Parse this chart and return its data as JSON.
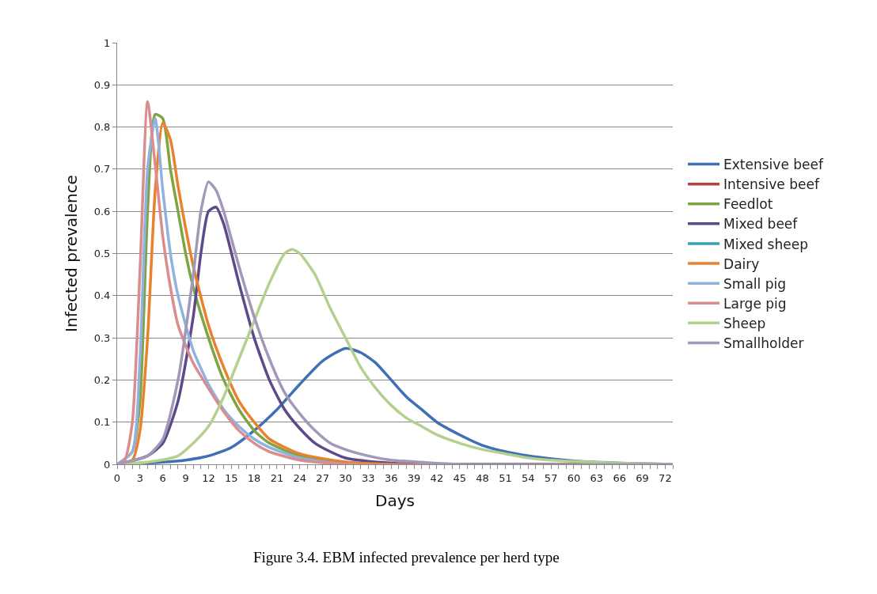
{
  "chart_data": {
    "type": "line",
    "xlabel": "Days",
    "ylabel": "Infected prevalence",
    "annotations": [
      "Figure 3.4. EBM infected prevalence per herd type"
    ],
    "xlim": [
      0,
      73
    ],
    "ylim": [
      0,
      1
    ],
    "yticks": [
      0,
      0.1,
      0.2,
      0.3,
      0.4,
      0.5,
      0.6,
      0.7,
      0.8,
      0.9,
      1
    ],
    "xticks": [
      0,
      {
        "value": 1,
        "label": null
      },
      {
        "value": 2,
        "label": null
      },
      3,
      {
        "value": 4,
        "label": null
      },
      {
        "value": 5,
        "label": null
      },
      6,
      {
        "value": 7,
        "label": null
      },
      {
        "value": 8,
        "label": null
      },
      9,
      {
        "value": 10,
        "label": null
      },
      {
        "value": 11,
        "label": null
      },
      12,
      {
        "value": 13,
        "label": null
      },
      {
        "value": 14,
        "label": null
      },
      15,
      {
        "value": 16,
        "label": null
      },
      {
        "value": 17,
        "label": null
      },
      18,
      {
        "value": 19,
        "label": null
      },
      {
        "value": 20,
        "label": null
      },
      21,
      {
        "value": 22,
        "label": null
      },
      {
        "value": 23,
        "label": null
      },
      24,
      {
        "value": 25,
        "label": null
      },
      {
        "value": 26,
        "label": null
      },
      27,
      {
        "value": 28,
        "label": null
      },
      {
        "value": 29,
        "label": null
      },
      30,
      {
        "value": 31,
        "label": null
      },
      {
        "value": 32,
        "label": null
      },
      33,
      {
        "value": 34,
        "label": null
      },
      {
        "value": 35,
        "label": null
      },
      36,
      {
        "value": 37,
        "label": null
      },
      {
        "value": 38,
        "label": null
      },
      39,
      {
        "value": 40,
        "label": null
      },
      {
        "value": 41,
        "label": null
      },
      42,
      {
        "value": 43,
        "label": null
      },
      {
        "value": 44,
        "label": null
      },
      45,
      {
        "value": 46,
        "label": null
      },
      {
        "value": 47,
        "label": null
      },
      48,
      {
        "value": 49,
        "label": null
      },
      {
        "value": 50,
        "label": null
      },
      51,
      {
        "value": 52,
        "label": null
      },
      {
        "value": 53,
        "label": null
      },
      54,
      {
        "value": 55,
        "label": null
      },
      {
        "value": 56,
        "label": null
      },
      57,
      {
        "value": 58,
        "label": null
      },
      {
        "value": 59,
        "label": null
      },
      60,
      {
        "value": 61,
        "label": null
      },
      {
        "value": 62,
        "label": null
      },
      63,
      {
        "value": 64,
        "label": null
      },
      {
        "value": 65,
        "label": null
      },
      66,
      {
        "value": 67,
        "label": null
      },
      {
        "value": 68,
        "label": null
      },
      69,
      {
        "value": 70,
        "label": null
      },
      {
        "value": 71,
        "label": null
      },
      72,
      {
        "value": 73,
        "label": null
      }
    ],
    "grid": "y",
    "legend": "right",
    "marker": "none",
    "line_style": "solid",
    "series": [
      {
        "name": "Extensive beef",
        "color": "#3f6fb5",
        "x": [
          0,
          6,
          9,
          12,
          15,
          18,
          21,
          24,
          27,
          30,
          32,
          34,
          36,
          38,
          40,
          42,
          45,
          48,
          51,
          54,
          57,
          60,
          66,
          73
        ],
        "values": [
          0,
          0.005,
          0.01,
          0.02,
          0.04,
          0.08,
          0.13,
          0.19,
          0.245,
          0.275,
          0.265,
          0.24,
          0.2,
          0.16,
          0.13,
          0.1,
          0.07,
          0.045,
          0.03,
          0.02,
          0.013,
          0.008,
          0.003,
          0
        ]
      },
      {
        "name": "Intensive beef",
        "color": "#b7403c"
      },
      {
        "name": "Feedlot",
        "color": "#7fa542",
        "x": [
          0,
          2,
          3,
          4,
          5,
          6,
          7,
          8,
          9,
          10,
          12,
          14,
          16,
          18,
          20,
          24,
          30,
          36,
          73
        ],
        "values": [
          0,
          0.03,
          0.15,
          0.6,
          0.83,
          0.82,
          0.7,
          0.6,
          0.5,
          0.42,
          0.3,
          0.2,
          0.13,
          0.08,
          0.05,
          0.02,
          0.005,
          0,
          0
        ]
      },
      {
        "name": "Mixed beef",
        "color": "#5e4a8b",
        "x": [
          0,
          4,
          6,
          8,
          10,
          11,
          12,
          13,
          14,
          16,
          18,
          20,
          22,
          24,
          26,
          28,
          30,
          33,
          36,
          40,
          73
        ],
        "values": [
          0,
          0.02,
          0.05,
          0.15,
          0.35,
          0.5,
          0.6,
          0.61,
          0.57,
          0.43,
          0.3,
          0.2,
          0.13,
          0.085,
          0.05,
          0.03,
          0.015,
          0.007,
          0.003,
          0,
          0
        ]
      },
      {
        "name": "Mixed sheep",
        "color": "#3aa0b5"
      },
      {
        "name": "Dairy",
        "color": "#e8822e",
        "x": [
          0,
          2,
          3,
          4,
          5,
          6,
          7,
          8,
          9,
          10,
          12,
          14,
          16,
          18,
          20,
          24,
          30,
          36,
          73
        ],
        "values": [
          0,
          0.01,
          0.08,
          0.3,
          0.65,
          0.81,
          0.77,
          0.66,
          0.56,
          0.47,
          0.33,
          0.23,
          0.15,
          0.1,
          0.06,
          0.025,
          0.005,
          0,
          0
        ]
      },
      {
        "name": "Small pig",
        "color": "#8fb2e0",
        "x": [
          0,
          2,
          3,
          4,
          5,
          6,
          7,
          8,
          10,
          12,
          14,
          16,
          18,
          20,
          24,
          30,
          73
        ],
        "values": [
          0,
          0.03,
          0.25,
          0.7,
          0.82,
          0.65,
          0.5,
          0.4,
          0.27,
          0.19,
          0.13,
          0.09,
          0.06,
          0.04,
          0.015,
          0,
          0
        ]
      },
      {
        "name": "Large pig",
        "color": "#db8c8c",
        "x": [
          0,
          1,
          2,
          3,
          4,
          5,
          6,
          7,
          8,
          10,
          12,
          14,
          16,
          18,
          20,
          24,
          30,
          73
        ],
        "values": [
          0,
          0.01,
          0.1,
          0.46,
          0.86,
          0.71,
          0.54,
          0.42,
          0.33,
          0.24,
          0.18,
          0.125,
          0.08,
          0.05,
          0.03,
          0.01,
          0,
          0
        ]
      },
      {
        "name": "Sheep",
        "color": "#b5d08e",
        "x": [
          0,
          4,
          8,
          10,
          12,
          14,
          16,
          18,
          20,
          22,
          23,
          24,
          26,
          28,
          30,
          32,
          34,
          36,
          38,
          40,
          42,
          45,
          48,
          51,
          54,
          57,
          60,
          66,
          73
        ],
        "values": [
          0,
          0.005,
          0.02,
          0.05,
          0.09,
          0.16,
          0.25,
          0.34,
          0.43,
          0.5,
          0.51,
          0.5,
          0.45,
          0.37,
          0.3,
          0.23,
          0.18,
          0.14,
          0.11,
          0.09,
          0.07,
          0.05,
          0.035,
          0.025,
          0.015,
          0.01,
          0.007,
          0.003,
          0
        ]
      },
      {
        "name": "Smallholder",
        "color": "#a198ba",
        "x": [
          0,
          4,
          6,
          8,
          10,
          11,
          12,
          13,
          14,
          16,
          18,
          20,
          22,
          24,
          26,
          28,
          30,
          33,
          36,
          40,
          45,
          73
        ],
        "values": [
          0,
          0.02,
          0.06,
          0.2,
          0.45,
          0.6,
          0.67,
          0.65,
          0.6,
          0.47,
          0.35,
          0.25,
          0.17,
          0.12,
          0.08,
          0.05,
          0.035,
          0.02,
          0.01,
          0.005,
          0,
          0
        ]
      }
    ]
  }
}
